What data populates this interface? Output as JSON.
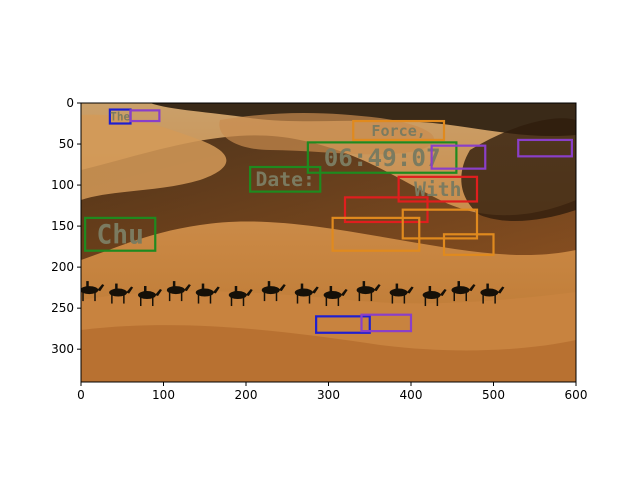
{
  "colors": {
    "sky_dark": "#2d2216",
    "sand_light": "#d9a063",
    "sand_mid": "#c88242",
    "sand_shadow": "#8a4f1e",
    "sand_deep": "#5e3413",
    "box_blue": "#1f1fd0",
    "box_purple": "#8a3fc8",
    "box_orange": "#e08a1e",
    "box_green": "#1f8a1f",
    "box_red": "#e01e1e"
  },
  "chart_data": {
    "type": "image",
    "x_axis": {
      "limits": [
        0,
        600
      ],
      "ticks": [
        0,
        100,
        200,
        300,
        400,
        500,
        600
      ]
    },
    "y_axis": {
      "limits": [
        340,
        0
      ],
      "inverted": true,
      "ticks": [
        0,
        50,
        100,
        150,
        200,
        250,
        300
      ]
    },
    "tick_labels": {
      "x": [
        "0",
        "100",
        "200",
        "300",
        "400",
        "500",
        "600"
      ],
      "y": [
        "0",
        "50",
        "100",
        "150",
        "200",
        "250",
        "300"
      ]
    },
    "text_detections": [
      {
        "text": "The",
        "color": "blue",
        "x": [
          35,
          60
        ],
        "y": [
          8,
          25
        ]
      },
      {
        "text": "",
        "color": "purple",
        "x": [
          60,
          95
        ],
        "y": [
          9,
          22
        ]
      },
      {
        "text": "Force,",
        "color": "orange",
        "x": [
          330,
          440
        ],
        "y": [
          22,
          45
        ]
      },
      {
        "text": "06:49:07",
        "color": "green",
        "x": [
          275,
          455
        ],
        "y": [
          48,
          85
        ]
      },
      {
        "text": "",
        "color": "purple",
        "x": [
          425,
          490
        ],
        "y": [
          52,
          80
        ]
      },
      {
        "text": "",
        "color": "purple",
        "x": [
          530,
          595
        ],
        "y": [
          45,
          65
        ]
      },
      {
        "text": "Date:",
        "color": "green",
        "x": [
          205,
          290
        ],
        "y": [
          78,
          108
        ]
      },
      {
        "text": "With",
        "color": "red",
        "x": [
          385,
          480
        ],
        "y": [
          90,
          120
        ]
      },
      {
        "text": "",
        "color": "red",
        "x": [
          320,
          420
        ],
        "y": [
          115,
          145
        ]
      },
      {
        "text": "",
        "color": "orange",
        "x": [
          390,
          480
        ],
        "y": [
          130,
          165
        ]
      },
      {
        "text": "",
        "color": "orange",
        "x": [
          305,
          410
        ],
        "y": [
          140,
          180
        ]
      },
      {
        "text": "Chu",
        "color": "green",
        "x": [
          5,
          90
        ],
        "y": [
          140,
          180
        ]
      },
      {
        "text": "",
        "color": "orange",
        "x": [
          440,
          500
        ],
        "y": [
          160,
          185
        ]
      },
      {
        "text": "",
        "color": "blue",
        "x": [
          285,
          350
        ],
        "y": [
          260,
          280
        ]
      },
      {
        "text": "",
        "color": "purple",
        "x": [
          340,
          400
        ],
        "y": [
          258,
          278
        ]
      }
    ]
  }
}
